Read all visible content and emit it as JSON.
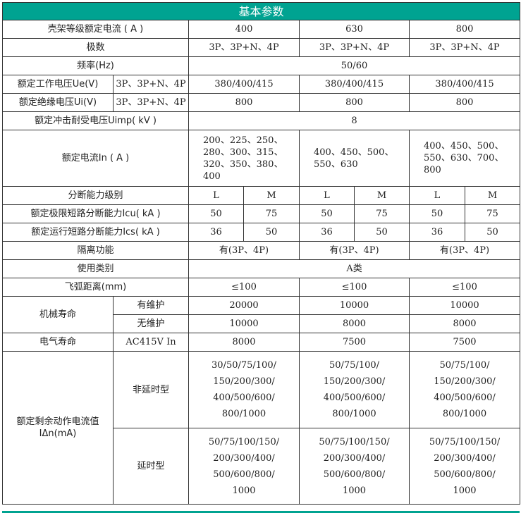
{
  "title": "基本参数",
  "frame_current": {
    "label": "壳架等级额定电流 ( A )",
    "values": [
      "400",
      "630",
      "800"
    ]
  },
  "poles": {
    "label": "极数",
    "values": [
      "3P、3P+N、4P",
      "3P、3P+N、4P",
      "3P、3P+N、4P"
    ]
  },
  "frequency": {
    "label": "频率(Hz)",
    "value": "50/60"
  },
  "ue": {
    "label": "额定工作电压Ue(V)",
    "sub": "3P、3P+N、4P",
    "values": [
      "380/400/415",
      "380/400/415",
      "380/400/415"
    ]
  },
  "ui": {
    "label": "额定绝缘电压Ui(V)",
    "sub": "3P、3P+N、4P",
    "values": [
      "800",
      "800",
      "800"
    ]
  },
  "uimp": {
    "label": "额定冲击耐受电压Uimp( kV )",
    "value": "8"
  },
  "rated_current": {
    "label": "额定电流In ( A )",
    "values": [
      "200、225、250、\n280、300、315、\n320、350、380、\n400",
      "400、450、500、\n550、630",
      "400、450、500、\n550、630、700、\n800"
    ]
  },
  "breaking_level": {
    "label": "分断能力级别",
    "values": [
      "L",
      "M",
      "L",
      "M",
      "L",
      "M"
    ]
  },
  "icu": {
    "label": "额定极限短路分断能力Icu( kA )",
    "values": [
      "50",
      "75",
      "50",
      "75",
      "50",
      "75"
    ]
  },
  "ics": {
    "label": "额定运行短路分断能力Ics( kA )",
    "values": [
      "36",
      "50",
      "36",
      "50",
      "36",
      "50"
    ]
  },
  "isolation": {
    "label": "隔离功能",
    "values": [
      "有(3P、4P)",
      "有(3P、4P)",
      "有(3P、4P)"
    ]
  },
  "category": {
    "label": "使用类别",
    "value": "A类"
  },
  "arc_distance": {
    "label": "飞弧距离(mm)",
    "values": [
      "≤100",
      "≤100",
      "≤100"
    ]
  },
  "mechanical_life": {
    "label": "机械寿命",
    "with_maintenance": {
      "label": "有维护",
      "values": [
        "20000",
        "10000",
        "10000"
      ]
    },
    "without_maintenance": {
      "label": "无维护",
      "values": [
        "10000",
        "8000",
        "8000"
      ]
    }
  },
  "electrical_life": {
    "label": "电气寿命",
    "sub": "AC415V In",
    "values": [
      "8000",
      "7500",
      "7500"
    ]
  },
  "residual_current": {
    "label": "额定剩余动作电流值\nIΔn(mA)",
    "non_delay": {
      "label": "非延时型",
      "values": [
        "30/50/75/100/\n150/200/300/\n400/500/600/\n800/1000",
        "50/75/100/\n150/200/300/\n400/500/600/\n800/1000",
        "50/75/100/\n150/200/300/\n400/500/600/\n800/1000"
      ]
    },
    "delay": {
      "label": "延时型",
      "values": [
        "50/75/100/150/\n200/300/400/\n500/600/800/\n1000",
        "50/75/100/150/\n200/300/400/\n500/600/800/\n1000",
        "50/75/100/150/\n200/300/400/\n500/600/800/\n1000"
      ]
    }
  },
  "colors": {
    "header": "#00a391",
    "border": "#333333"
  }
}
